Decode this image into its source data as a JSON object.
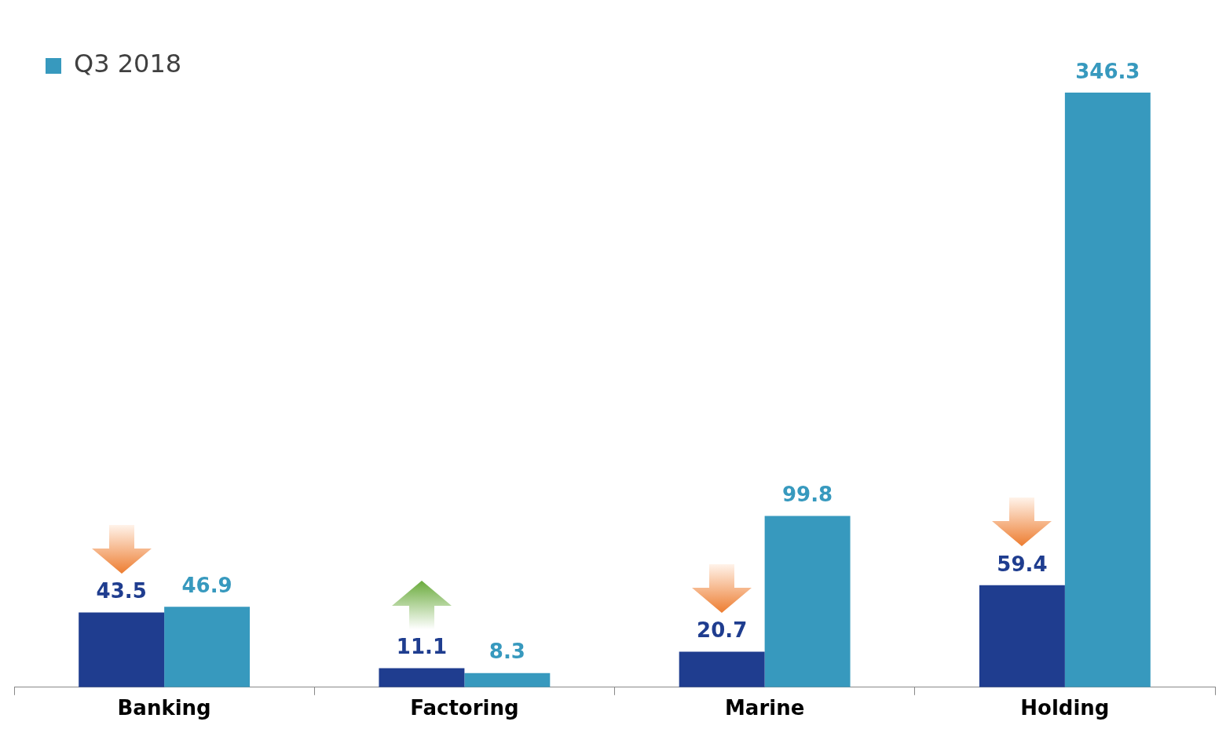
{
  "chart_data": {
    "type": "bar",
    "categories": [
      "Banking",
      "Factoring",
      "Marine",
      "Holding"
    ],
    "series": [
      {
        "color": "#1f3d8f",
        "values": [
          43.5,
          11.1,
          20.7,
          59.4
        ]
      },
      {
        "name": "Q3 2018",
        "color": "#3799be",
        "values": [
          46.9,
          8.3,
          99.8,
          346.3
        ]
      }
    ],
    "data_labels": true,
    "legend": "top left",
    "grid": false
  }
}
